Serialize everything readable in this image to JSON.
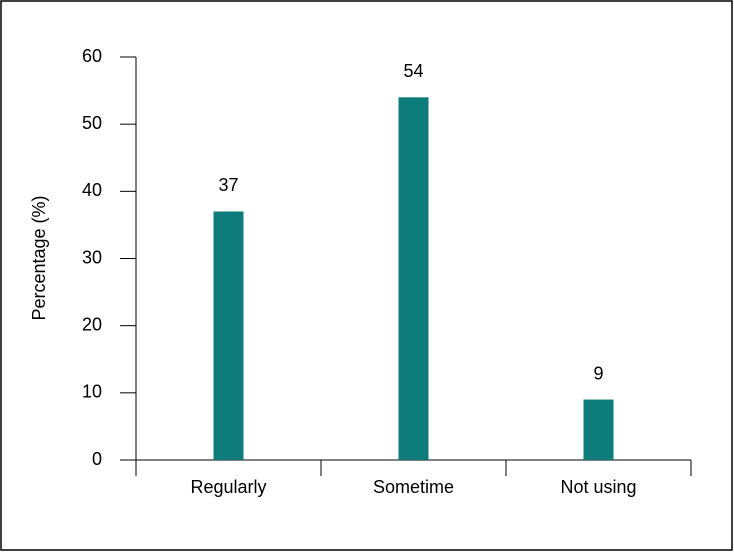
{
  "chart_data": {
    "type": "bar",
    "y_label": "Percentage (%)",
    "categories": [
      "Regularly",
      "Sometime",
      "Not using"
    ],
    "values": [
      37,
      54,
      9
    ],
    "color": "#0e7c7b",
    "ylim": [
      0,
      60
    ],
    "yticks": [
      0,
      10,
      20,
      30,
      40,
      50,
      60
    ],
    "data_labels": true
  }
}
